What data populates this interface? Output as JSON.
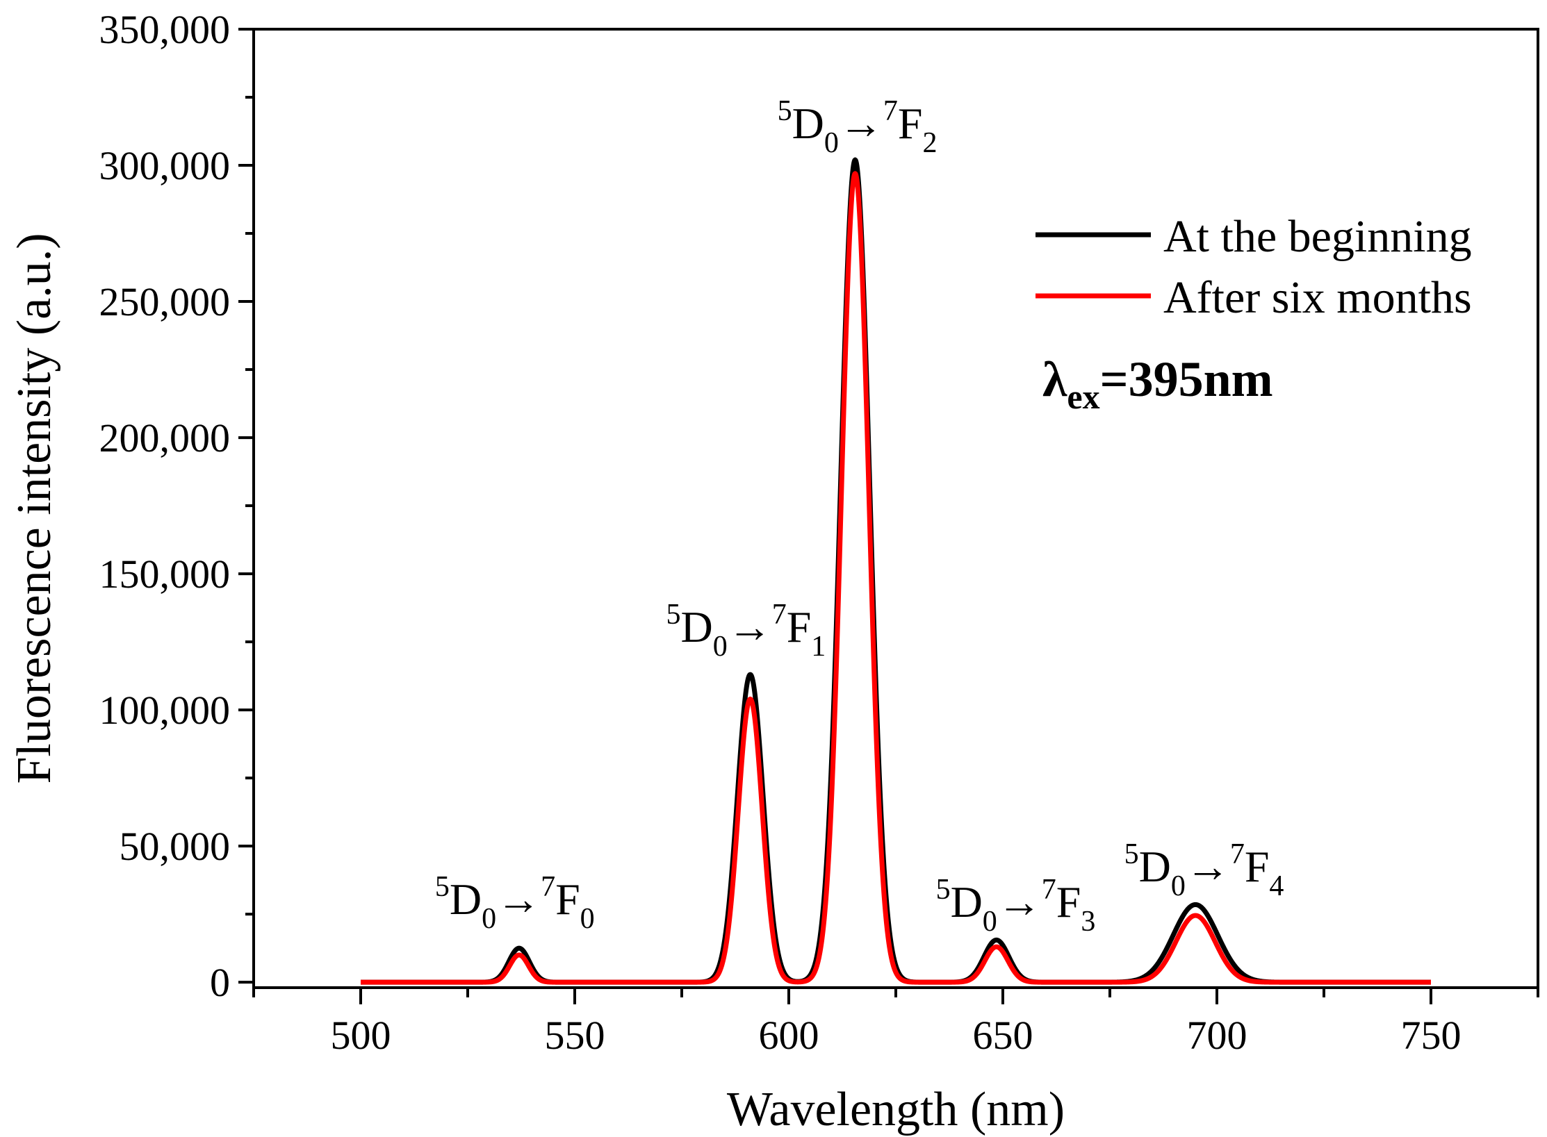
{
  "chart_data": {
    "type": "line",
    "title": "",
    "xlabel": "Wavelength (nm)",
    "ylabel": "Fluorescence intensity (a.u.)",
    "xlim": [
      475,
      775
    ],
    "ylim": [
      -2000,
      350000
    ],
    "x_ticks": [
      500,
      550,
      600,
      650,
      700,
      750
    ],
    "x_tick_labels": [
      "500",
      "550",
      "600",
      "650",
      "700",
      "750"
    ],
    "y_ticks": [
      0,
      50000,
      100000,
      150000,
      200000,
      250000,
      300000,
      350000
    ],
    "y_tick_labels": [
      "0",
      "50,000",
      "100,000",
      "150,000",
      "200,000",
      "250,000",
      "300,000",
      "350,000"
    ],
    "x_range_plotted": [
      500,
      750
    ],
    "series": [
      {
        "name": "At the beginning",
        "color": "#000000",
        "peaks": [
          {
            "center": 537,
            "height": 12500,
            "sigma": 2.4
          },
          {
            "center": 591,
            "height": 113000,
            "sigma": 3.0
          },
          {
            "center": 615.5,
            "height": 302000,
            "sigma": 3.4
          },
          {
            "center": 648.5,
            "height": 15500,
            "sigma": 2.9
          },
          {
            "center": 695,
            "height": 28500,
            "sigma": 5.2
          }
        ]
      },
      {
        "name": "After six months",
        "color": "#ff0000",
        "peaks": [
          {
            "center": 537,
            "height": 10000,
            "sigma": 2.2
          },
          {
            "center": 591,
            "height": 104000,
            "sigma": 2.8
          },
          {
            "center": 615.5,
            "height": 297000,
            "sigma": 3.2
          },
          {
            "center": 648.5,
            "height": 13000,
            "sigma": 2.7
          },
          {
            "center": 695,
            "height": 24500,
            "sigma": 4.6
          }
        ]
      }
    ],
    "annotations": [
      {
        "base": "D",
        "pre_sup": "5",
        "sub": "0",
        "arrow": "→",
        "target": "F",
        "target_pre_sup": "7",
        "target_sub": "0",
        "x": 536,
        "y": 25000
      },
      {
        "base": "D",
        "pre_sup": "5",
        "sub": "0",
        "arrow": "→",
        "target": "F",
        "target_pre_sup": "7",
        "target_sub": "1",
        "x": 590,
        "y": 125000
      },
      {
        "base": "D",
        "pre_sup": "5",
        "sub": "0",
        "arrow": "→",
        "target": "F",
        "target_pre_sup": "7",
        "target_sub": "2",
        "x": 616,
        "y": 310000
      },
      {
        "base": "D",
        "pre_sup": "5",
        "sub": "0",
        "arrow": "→",
        "target": "F",
        "target_pre_sup": "7",
        "target_sub": "3",
        "x": 653,
        "y": 24000
      },
      {
        "base": "D",
        "pre_sup": "5",
        "sub": "0",
        "arrow": "→",
        "target": "F",
        "target_pre_sup": "7",
        "target_sub": "4",
        "x": 697,
        "y": 37000
      }
    ],
    "excitation": {
      "symbol": "λ",
      "sub": "ex",
      "text": "=395nm"
    },
    "legend_position": "top-right",
    "grid": false
  }
}
